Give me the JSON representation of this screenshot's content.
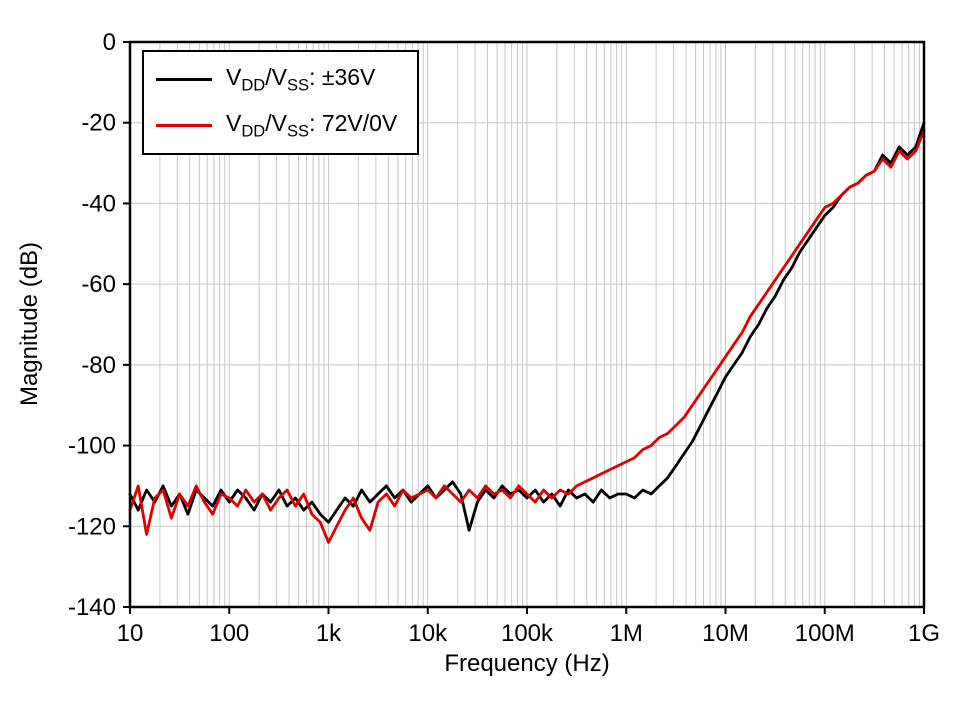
{
  "figure": {
    "background": "#ffffff",
    "xlabel": "Frequency (Hz)",
    "ylabel": "Magnitude (dB)"
  },
  "chart_data": {
    "type": "line",
    "x_scale": "log",
    "x_range_log10": [
      1,
      9
    ],
    "ylim": [
      -140,
      0
    ],
    "ytick_step": 20,
    "grid": true,
    "grid_color": "#c8c8c8",
    "legend_position": "top-left",
    "xlabel": "Frequency (Hz)",
    "ylabel": "Magnitude (dB)",
    "x_ticks": [
      {
        "log10": 1,
        "label": "10"
      },
      {
        "log10": 2,
        "label": "100"
      },
      {
        "log10": 3,
        "label": "1k"
      },
      {
        "log10": 4,
        "label": "10k"
      },
      {
        "log10": 5,
        "label": "100k"
      },
      {
        "log10": 6,
        "label": "1M"
      },
      {
        "log10": 7,
        "label": "10M"
      },
      {
        "log10": 8,
        "label": "100M"
      },
      {
        "log10": 9,
        "label": "1G"
      }
    ],
    "y_ticks": [
      {
        "value": 0,
        "label": "0"
      },
      {
        "value": -20,
        "label": "-20"
      },
      {
        "value": -40,
        "label": "-40"
      },
      {
        "value": -60,
        "label": "-60"
      },
      {
        "value": -80,
        "label": "-80"
      },
      {
        "value": -100,
        "label": "-100"
      },
      {
        "value": -120,
        "label": "-120"
      },
      {
        "value": -140,
        "label": "-140"
      }
    ],
    "x_log10_hz": [
      1.0,
      1.083,
      1.167,
      1.25,
      1.333,
      1.417,
      1.5,
      1.583,
      1.667,
      1.75,
      1.833,
      1.917,
      2.0,
      2.083,
      2.167,
      2.25,
      2.333,
      2.417,
      2.5,
      2.583,
      2.667,
      2.75,
      2.833,
      2.917,
      3.0,
      3.083,
      3.167,
      3.25,
      3.333,
      3.417,
      3.5,
      3.583,
      3.667,
      3.75,
      3.833,
      3.917,
      4.0,
      4.083,
      4.167,
      4.25,
      4.333,
      4.417,
      4.5,
      4.583,
      4.667,
      4.75,
      4.833,
      4.917,
      5.0,
      5.083,
      5.167,
      5.25,
      5.333,
      5.417,
      5.5,
      5.583,
      5.667,
      5.75,
      5.833,
      5.917,
      6.0,
      6.083,
      6.167,
      6.25,
      6.333,
      6.417,
      6.5,
      6.583,
      6.667,
      6.75,
      6.833,
      6.917,
      7.0,
      7.083,
      7.167,
      7.25,
      7.333,
      7.417,
      7.5,
      7.583,
      7.667,
      7.75,
      7.833,
      7.917,
      8.0,
      8.083,
      8.167,
      8.25,
      8.333,
      8.417,
      8.5,
      8.583,
      8.667,
      8.75,
      8.833,
      8.917,
      9.0
    ],
    "series": [
      {
        "id": "vdd-vss-pm36v",
        "name": "VDD/VSS: ±36V",
        "label_parts": [
          [
            "V",
            0
          ],
          [
            "DD",
            1
          ],
          [
            "/V",
            0
          ],
          [
            "SS",
            1
          ],
          [
            ": ±36V",
            0
          ]
        ],
        "color": "#000000",
        "values": [
          -112,
          -116,
          -111,
          -114,
          -110,
          -115,
          -112,
          -117,
          -111,
          -113,
          -115,
          -111,
          -114,
          -111,
          -113,
          -116,
          -112,
          -114,
          -111,
          -115,
          -113,
          -116,
          -114,
          -117,
          -119,
          -116,
          -113,
          -115,
          -111,
          -114,
          -112,
          -110,
          -113,
          -111,
          -114,
          -112,
          -110,
          -113,
          -111,
          -109,
          -112,
          -121,
          -114,
          -111,
          -113,
          -110,
          -112,
          -111,
          -113,
          -111,
          -114,
          -112,
          -115,
          -111,
          -113,
          -112,
          -114,
          -111,
          -113,
          -112,
          -112,
          -113,
          -111,
          -112,
          -110,
          -108,
          -105,
          -102,
          -99,
          -95,
          -91,
          -87,
          -83,
          -80,
          -77,
          -73,
          -70,
          -66,
          -63,
          -59,
          -56,
          -52,
          -49,
          -46,
          -43,
          -41,
          -38,
          -36,
          -35,
          -33,
          -32,
          -28,
          -30,
          -26,
          -28,
          -26,
          -20
        ]
      },
      {
        "id": "vdd-vss-72v-0v",
        "name": "VDD/VSS: 72V/0V",
        "label_parts": [
          [
            "V",
            0
          ],
          [
            "DD",
            1
          ],
          [
            "/V",
            0
          ],
          [
            "SS",
            1
          ],
          [
            ": 72V/0V",
            0
          ]
        ],
        "color": "#e00000",
        "values": [
          -116,
          -110,
          -122,
          -113,
          -111,
          -118,
          -112,
          -115,
          -110,
          -114,
          -117,
          -112,
          -113,
          -115,
          -111,
          -114,
          -112,
          -116,
          -113,
          -111,
          -115,
          -112,
          -117,
          -119,
          -124,
          -120,
          -116,
          -113,
          -118,
          -121,
          -114,
          -112,
          -115,
          -111,
          -113,
          -112,
          -111,
          -113,
          -110,
          -112,
          -114,
          -111,
          -113,
          -110,
          -112,
          -111,
          -113,
          -110,
          -112,
          -114,
          -111,
          -113,
          -111,
          -112,
          -110,
          -109,
          -108,
          -107,
          -106,
          -105,
          -104,
          -103,
          -101,
          -100,
          -98,
          -97,
          -95,
          -93,
          -90,
          -87,
          -84,
          -81,
          -78,
          -75,
          -72,
          -68,
          -65,
          -62,
          -59,
          -56,
          -53,
          -50,
          -47,
          -44,
          -41,
          -40,
          -38,
          -36,
          -35,
          -33,
          -32,
          -29,
          -31,
          -27,
          -29,
          -27,
          -22
        ]
      }
    ]
  }
}
